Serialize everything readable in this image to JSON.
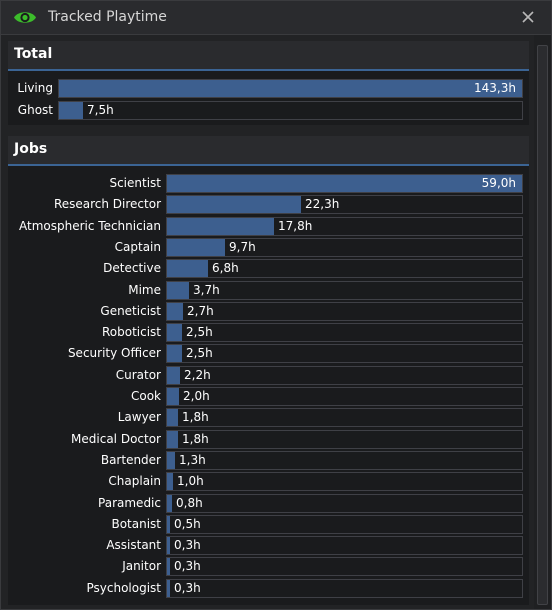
{
  "window": {
    "title": "Tracked Playtime",
    "close_icon": "close-icon",
    "eye_icon": "eye-icon"
  },
  "colors": {
    "accent": "#3d5f8f",
    "header_line": "#3b6494",
    "eye": "#3cbc2b"
  },
  "total": {
    "title": "Total",
    "rows": [
      {
        "label": "Living",
        "value": "143,3h",
        "fraction": 1.0
      },
      {
        "label": "Ghost",
        "value": "7,5h",
        "fraction": 0.052
      }
    ]
  },
  "jobs": {
    "title": "Jobs",
    "rows": [
      {
        "label": "Scientist",
        "value": "59,0h",
        "fraction": 1.0
      },
      {
        "label": "Research Director",
        "value": "22,3h",
        "fraction": 0.378
      },
      {
        "label": "Atmospheric Technician",
        "value": "17,8h",
        "fraction": 0.302
      },
      {
        "label": "Captain",
        "value": "9,7h",
        "fraction": 0.164
      },
      {
        "label": "Detective",
        "value": "6,8h",
        "fraction": 0.115
      },
      {
        "label": "Mime",
        "value": "3,7h",
        "fraction": 0.063
      },
      {
        "label": "Geneticist",
        "value": "2,7h",
        "fraction": 0.046
      },
      {
        "label": "Roboticist",
        "value": "2,5h",
        "fraction": 0.042
      },
      {
        "label": "Security Officer",
        "value": "2,5h",
        "fraction": 0.042
      },
      {
        "label": "Curator",
        "value": "2,2h",
        "fraction": 0.037
      },
      {
        "label": "Cook",
        "value": "2,0h",
        "fraction": 0.034
      },
      {
        "label": "Lawyer",
        "value": "1,8h",
        "fraction": 0.031
      },
      {
        "label": "Medical Doctor",
        "value": "1,8h",
        "fraction": 0.031
      },
      {
        "label": "Bartender",
        "value": "1,3h",
        "fraction": 0.022
      },
      {
        "label": "Chaplain",
        "value": "1,0h",
        "fraction": 0.017
      },
      {
        "label": "Paramedic",
        "value": "0,8h",
        "fraction": 0.014
      },
      {
        "label": "Botanist",
        "value": "0,5h",
        "fraction": 0.008
      },
      {
        "label": "Assistant",
        "value": "0,3h",
        "fraction": 0.005
      },
      {
        "label": "Janitor",
        "value": "0,3h",
        "fraction": 0.005
      },
      {
        "label": "Psychologist",
        "value": "0,3h",
        "fraction": 0.005
      }
    ]
  }
}
